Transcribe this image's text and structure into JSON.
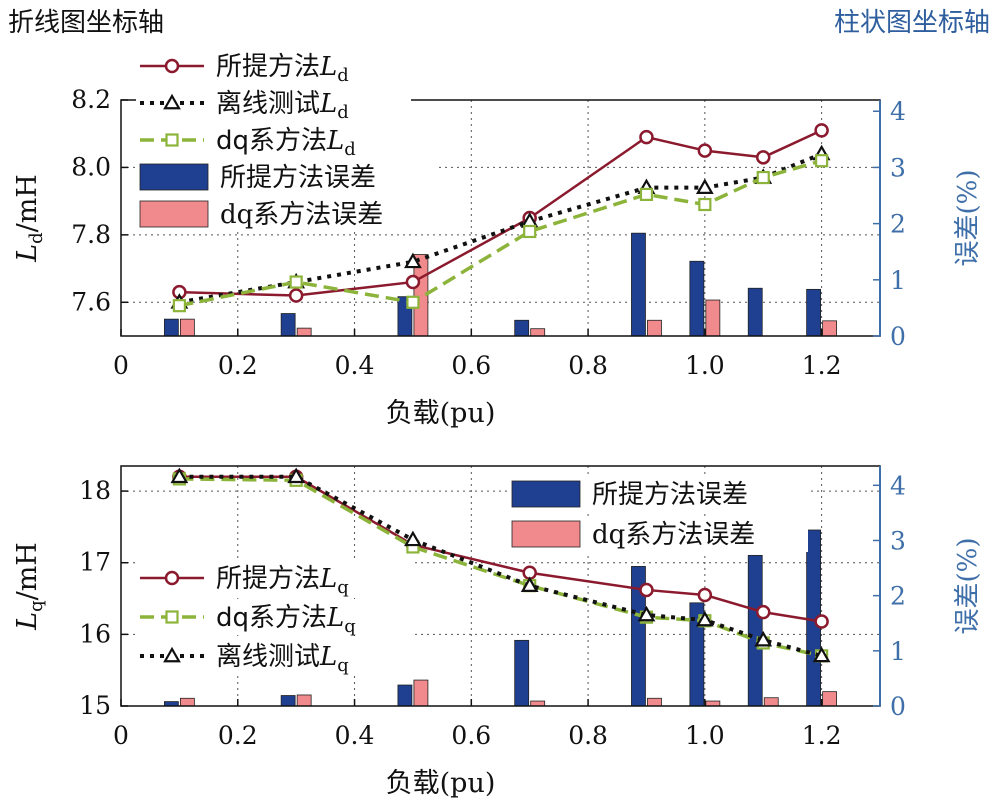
{
  "headers": {
    "left": "折线图坐标轴",
    "right": "柱状图坐标轴"
  },
  "colors": {
    "proposed": "#8b1a2e",
    "offline": "#111111",
    "dq": "#8db43a",
    "bar_proposed": "#1f3f91",
    "bar_dq": "#f08a8c",
    "right_axis": "#3f6fa8"
  },
  "chart_data": [
    {
      "id": "top",
      "type": "line+bar",
      "xlabel": "负载(pu)",
      "ylabel_main": "L",
      "ylabel_sub": "d",
      "ylabel_unit": "/mH",
      "ylabel_right": "误差(%)",
      "xlim": [
        0,
        1.3
      ],
      "xticks": [
        0,
        0.2,
        0.4,
        0.6,
        0.8,
        1.0,
        1.2
      ],
      "xtick_labels": [
        "0",
        "0.2",
        "0.4",
        "0.6",
        "0.8",
        "1.0",
        "1.2"
      ],
      "ylim": [
        7.5,
        8.2
      ],
      "yticks": [
        7.6,
        7.8,
        8.0,
        8.2
      ],
      "ytick_labels": [
        "7.6",
        "7.8",
        "8.0",
        "8.2"
      ],
      "ylim_right": [
        0,
        4.2
      ],
      "yticks_right": [
        0,
        1,
        2,
        3,
        4
      ],
      "ytick_labels_right": [
        "0",
        "1",
        "2",
        "3",
        "4"
      ],
      "x": [
        0.1,
        0.3,
        0.5,
        0.7,
        0.9,
        1.0,
        1.1,
        1.2
      ],
      "lines": [
        {
          "key": "proposed",
          "values": [
            7.63,
            7.62,
            7.66,
            7.85,
            8.09,
            8.05,
            8.03,
            8.11
          ]
        },
        {
          "key": "offline",
          "values": [
            7.6,
            7.66,
            7.72,
            7.84,
            7.94,
            7.94,
            7.97,
            8.04
          ]
        },
        {
          "key": "dq",
          "values": [
            7.59,
            7.66,
            7.6,
            7.81,
            7.92,
            7.89,
            7.97,
            8.02
          ]
        }
      ],
      "bars": [
        {
          "key": "bar_proposed",
          "values": [
            0.3,
            0.4,
            0.7,
            0.28,
            1.83,
            1.33,
            0.85,
            0.83
          ]
        },
        {
          "key": "bar_dq",
          "values": [
            0.3,
            0.14,
            1.45,
            0.13,
            0.28,
            0.64,
            0.0,
            0.27
          ]
        }
      ],
      "legend": [
        {
          "key": "proposed",
          "kind": "line",
          "label": "所提方法",
          "sym": "L",
          "sub": "d"
        },
        {
          "key": "offline",
          "kind": "line",
          "label": "离线测试",
          "sym": "L",
          "sub": "d"
        },
        {
          "key": "dq",
          "kind": "line",
          "label": "dq系方法",
          "sym": "L",
          "sub": "d"
        },
        {
          "key": "bar_proposed",
          "kind": "bar",
          "label": "所提方法误差"
        },
        {
          "key": "bar_dq",
          "kind": "bar",
          "label": "dq系方法误差"
        }
      ]
    },
    {
      "id": "bottom",
      "type": "line+bar",
      "xlabel": "负载(pu)",
      "ylabel_main": "L",
      "ylabel_sub": "q",
      "ylabel_unit": "/mH",
      "ylabel_right": "误差(%)",
      "xlim": [
        0,
        1.3
      ],
      "xticks": [
        0,
        0.2,
        0.4,
        0.6,
        0.8,
        1.0,
        1.2
      ],
      "xtick_labels": [
        "0",
        "0.2",
        "0.4",
        "0.6",
        "0.8",
        "1.0",
        "1.2"
      ],
      "ylim": [
        15.0,
        18.35
      ],
      "yticks": [
        15,
        16,
        17,
        18
      ],
      "ytick_labels": [
        "15",
        "16",
        "17",
        "18"
      ],
      "ylim_right": [
        0,
        4.35
      ],
      "yticks_right": [
        0,
        1,
        2,
        3,
        4
      ],
      "ytick_labels_right": [
        "0",
        "1",
        "2",
        "3",
        "4"
      ],
      "x": [
        0.1,
        0.3,
        0.5,
        0.7,
        0.9,
        1.0,
        1.1,
        1.2
      ],
      "lines": [
        {
          "key": "proposed",
          "values": [
            18.2,
            18.2,
            17.25,
            16.86,
            16.62,
            16.55,
            16.31,
            16.18
          ]
        },
        {
          "key": "dq",
          "values": [
            18.17,
            18.15,
            17.22,
            16.68,
            16.24,
            16.19,
            15.88,
            15.7
          ]
        },
        {
          "key": "offline",
          "values": [
            18.2,
            18.2,
            17.32,
            16.68,
            16.27,
            16.2,
            15.92,
            15.7
          ]
        }
      ],
      "bars": [
        {
          "key": "bar_proposed",
          "values": [
            0.08,
            0.19,
            0.38,
            1.19,
            2.53,
            1.87,
            2.73,
            3.19
          ]
        },
        {
          "key": "bar_dq",
          "values": [
            0.14,
            0.2,
            0.47,
            0.09,
            0.14,
            0.09,
            0.15,
            0.26
          ]
        }
      ],
      "legend": [
        {
          "key": "bar_proposed",
          "kind": "bar",
          "label": "所提方法误差"
        },
        {
          "key": "bar_dq",
          "kind": "bar",
          "label": "dq系方法误差"
        },
        {
          "key": "proposed",
          "kind": "line",
          "label": "所提方法",
          "sym": "L",
          "sub": "q"
        },
        {
          "key": "dq",
          "kind": "line",
          "label": "dq系方法",
          "sym": "L",
          "sub": "q"
        },
        {
          "key": "offline",
          "kind": "line",
          "label": "离线测试",
          "sym": "L",
          "sub": "q"
        }
      ]
    }
  ]
}
